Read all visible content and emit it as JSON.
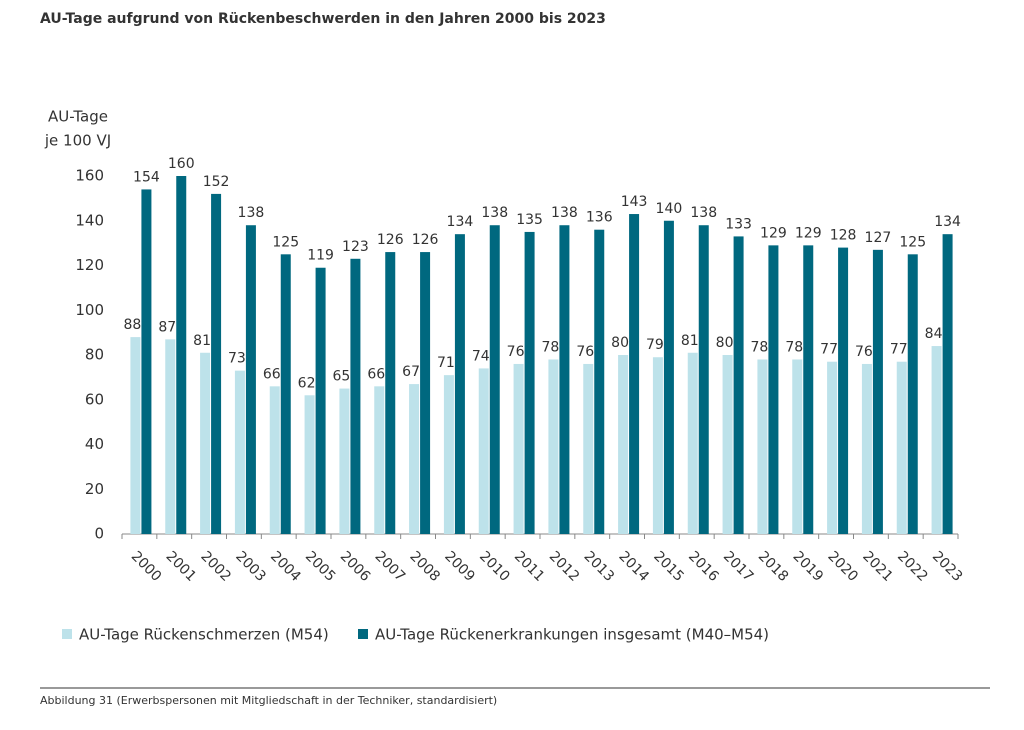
{
  "chart_data": {
    "type": "bar",
    "title": "AU-Tage aufgrund von Rückenbeschwerden in den Jahren 2000 bis 2023",
    "ylabel": [
      "AU-Tage",
      "je 100 VJ"
    ],
    "categories": [
      "2000",
      "2001",
      "2002",
      "2003",
      "2004",
      "2005",
      "2006",
      "2007",
      "2008",
      "2009",
      "2010",
      "2011",
      "2012",
      "2013",
      "2014",
      "2015",
      "2016",
      "2017",
      "2018",
      "2019",
      "2020",
      "2021",
      "2022",
      "2023"
    ],
    "series": [
      {
        "name": "AU-Tage Rückenschmerzen (M54)",
        "color": "#bde2ea",
        "values": [
          88,
          87,
          81,
          73,
          66,
          62,
          65,
          66,
          67,
          71,
          74,
          76,
          78,
          76,
          80,
          79,
          81,
          80,
          78,
          78,
          77,
          76,
          77,
          84
        ]
      },
      {
        "name": "AU-Tage Rückenerkrankungen insgesamt (M40–M54)",
        "color": "#00687f",
        "values": [
          154,
          160,
          152,
          138,
          125,
          119,
          123,
          126,
          126,
          134,
          138,
          135,
          138,
          136,
          143,
          140,
          138,
          133,
          129,
          129,
          128,
          127,
          125,
          134
        ]
      }
    ],
    "ylim": [
      0,
      160
    ],
    "yticks": [
      0,
      20,
      40,
      60,
      80,
      100,
      120,
      140,
      160
    ],
    "caption": "Abbildung 31 (Erwerbspersonen mit Mitgliedschaft in der Techniker, standardisiert)"
  }
}
